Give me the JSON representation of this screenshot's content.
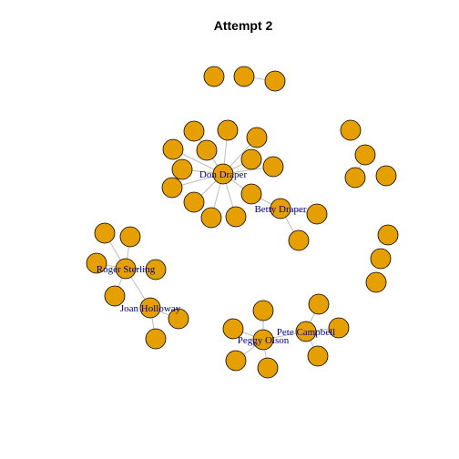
{
  "title": "Attempt 2",
  "colors": {
    "node_fill": "#E69F00",
    "node_stroke": "#000000",
    "edge": "#BEBEBE",
    "label": "#00008B"
  },
  "labels": {
    "don": "Don Draper",
    "betty": "Betty Draper",
    "roger": "Roger Sterling",
    "joan": "Joan Holloway",
    "peggy": "Peggy Olson",
    "pete": "Pete Campbell"
  }
}
